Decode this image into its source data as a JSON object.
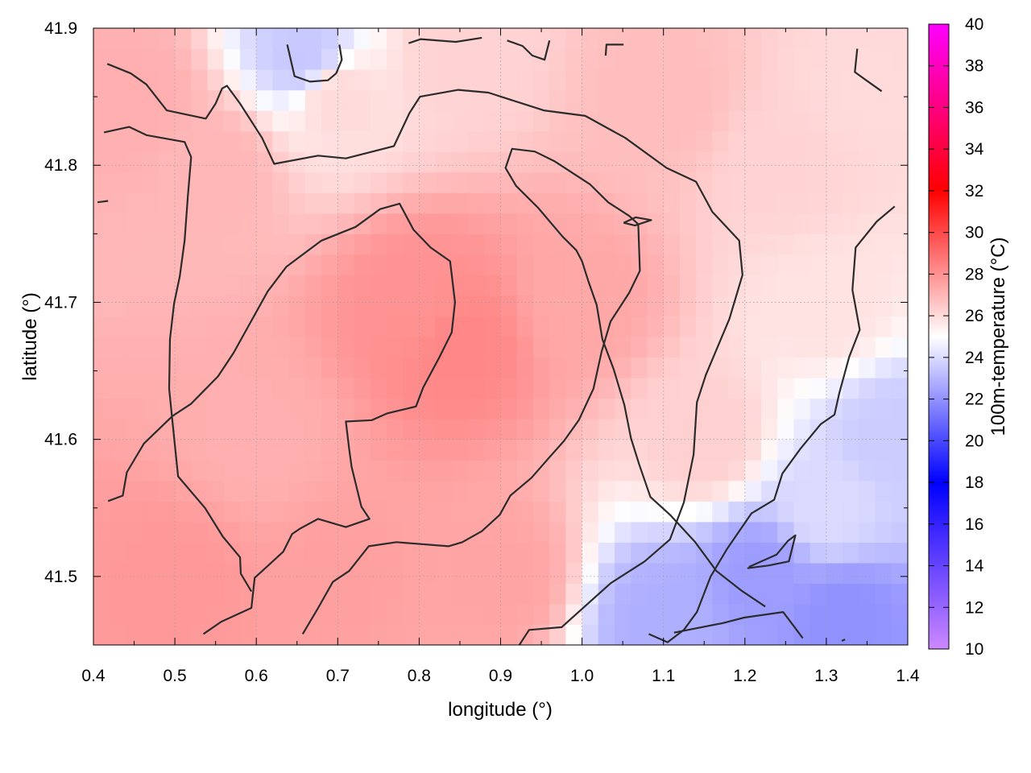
{
  "chart_data": {
    "type": "heatmap",
    "title": "",
    "xlabel": "longitude (°)",
    "ylabel": "latitude (°)",
    "colorbar_label": "100m-temperature (°C)",
    "xlim": [
      0.4,
      1.4
    ],
    "ylim": [
      41.45,
      41.9
    ],
    "clim": [
      10,
      40
    ],
    "grid": true,
    "x_ticks": [
      0.4,
      0.5,
      0.6,
      0.7,
      0.8,
      0.9,
      1.0,
      1.1,
      1.2,
      1.3,
      1.4
    ],
    "x_tick_labels": [
      "0.4",
      "0.5",
      "0.6",
      "0.7",
      "0.8",
      "0.9",
      "1.0",
      "1.1",
      "1.2",
      "1.3",
      "1.4"
    ],
    "y_ticks": [
      41.5,
      41.6,
      41.7,
      41.8,
      41.9
    ],
    "y_tick_labels": [
      "41.5",
      "41.6",
      "41.7",
      "41.8",
      "41.9"
    ],
    "colorbar_ticks": [
      10,
      12,
      14,
      16,
      18,
      20,
      22,
      24,
      26,
      28,
      30,
      32,
      34,
      36,
      38,
      40
    ],
    "colorbar_tick_labels": [
      "10",
      "12",
      "14",
      "16",
      "18",
      "20",
      "22",
      "24",
      "26",
      "28",
      "30",
      "32",
      "34",
      "36",
      "38",
      "40"
    ],
    "colormap": [
      {
        "value": 10,
        "color": "#cc88ff"
      },
      {
        "value": 18,
        "color": "#0000ff"
      },
      {
        "value": 25,
        "color": "#ffffff"
      },
      {
        "value": 32,
        "color": "#ff0000"
      },
      {
        "value": 40,
        "color": "#ff00ff"
      }
    ],
    "field_samples": [
      {
        "lon": 0.45,
        "lat": 41.85,
        "value": 27.2
      },
      {
        "lon": 0.55,
        "lat": 41.8,
        "value": 27.0
      },
      {
        "lon": 0.66,
        "lat": 41.88,
        "value": 23.5
      },
      {
        "lon": 0.7,
        "lat": 41.85,
        "value": 26.0
      },
      {
        "lon": 0.85,
        "lat": 41.88,
        "value": 26.2
      },
      {
        "lon": 0.8,
        "lat": 41.7,
        "value": 28.0
      },
      {
        "lon": 0.85,
        "lat": 41.67,
        "value": 28.3
      },
      {
        "lon": 0.6,
        "lat": 41.6,
        "value": 27.2
      },
      {
        "lon": 0.5,
        "lat": 41.5,
        "value": 27.8
      },
      {
        "lon": 0.7,
        "lat": 41.5,
        "value": 27.6
      },
      {
        "lon": 0.9,
        "lat": 41.5,
        "value": 27.5
      },
      {
        "lon": 1.0,
        "lat": 41.7,
        "value": 27.4
      },
      {
        "lon": 1.1,
        "lat": 41.85,
        "value": 26.8
      },
      {
        "lon": 1.25,
        "lat": 41.8,
        "value": 26.2
      },
      {
        "lon": 1.35,
        "lat": 41.85,
        "value": 26.0
      },
      {
        "lon": 1.3,
        "lat": 41.7,
        "value": 25.8
      },
      {
        "lon": 1.15,
        "lat": 41.6,
        "value": 26.3
      },
      {
        "lon": 1.3,
        "lat": 41.55,
        "value": 24.0
      },
      {
        "lon": 1.22,
        "lat": 41.5,
        "value": 22.3
      },
      {
        "lon": 1.1,
        "lat": 41.47,
        "value": 22.8
      },
      {
        "lon": 1.32,
        "lat": 41.47,
        "value": 22.0
      },
      {
        "lon": 1.38,
        "lat": 41.6,
        "value": 23.6
      }
    ],
    "contours": [
      {
        "level": 27,
        "points": [
          [
            0.417,
            41.874
          ],
          [
            0.446,
            41.867
          ],
          [
            0.465,
            41.859
          ],
          [
            0.49,
            41.84
          ],
          [
            0.538,
            41.834
          ],
          [
            0.55,
            41.845
          ],
          [
            0.558,
            41.856
          ],
          [
            0.564,
            41.858
          ],
          [
            0.58,
            41.845
          ],
          [
            0.607,
            41.82
          ],
          [
            0.622,
            41.801
          ],
          [
            0.676,
            41.807
          ],
          [
            0.71,
            41.805
          ],
          [
            0.769,
            41.814
          ],
          [
            0.788,
            41.838
          ],
          [
            0.801,
            41.85
          ],
          [
            0.848,
            41.855
          ],
          [
            0.885,
            41.853
          ],
          [
            0.953,
            41.84
          ],
          [
            1.004,
            41.836
          ],
          [
            1.053,
            41.82
          ],
          [
            1.104,
            41.798
          ],
          [
            1.14,
            41.788
          ],
          [
            1.16,
            41.766
          ],
          [
            1.193,
            41.745
          ],
          [
            1.197,
            41.72
          ],
          [
            1.181,
            41.688
          ],
          [
            1.152,
            41.647
          ],
          [
            1.141,
            41.627
          ],
          [
            1.137,
            41.589
          ],
          [
            1.125,
            41.554
          ],
          [
            1.108,
            41.527
          ],
          [
            1.077,
            41.511
          ],
          [
            1.035,
            41.495
          ],
          [
            0.975,
            41.463
          ],
          [
            0.935,
            41.461
          ],
          [
            0.911,
            41.439
          ]
        ]
      },
      {
        "level": 27,
        "points": [
          [
            0.413,
            41.824
          ],
          [
            0.444,
            41.828
          ],
          [
            0.465,
            41.822
          ],
          [
            0.512,
            41.817
          ],
          [
            0.52,
            41.806
          ],
          [
            0.516,
            41.778
          ],
          [
            0.512,
            41.745
          ],
          [
            0.506,
            41.719
          ],
          [
            0.499,
            41.699
          ],
          [
            0.494,
            41.673
          ],
          [
            0.493,
            41.637
          ],
          [
            0.497,
            41.613
          ],
          [
            0.504,
            41.573
          ],
          [
            0.537,
            41.55
          ],
          [
            0.559,
            41.529
          ],
          [
            0.58,
            41.514
          ],
          [
            0.581,
            41.502
          ],
          [
            0.594,
            41.489
          ]
        ]
      },
      {
        "level": 28,
        "points": [
          [
            0.418,
            41.555
          ],
          [
            0.436,
            41.559
          ],
          [
            0.441,
            41.576
          ],
          [
            0.462,
            41.597
          ],
          [
            0.497,
            41.617
          ],
          [
            0.52,
            41.626
          ],
          [
            0.553,
            41.646
          ],
          [
            0.572,
            41.663
          ],
          [
            0.614,
            41.708
          ],
          [
            0.637,
            41.726
          ],
          [
            0.68,
            41.745
          ],
          [
            0.722,
            41.755
          ],
          [
            0.752,
            41.768
          ],
          [
            0.776,
            41.772
          ],
          [
            0.793,
            41.753
          ],
          [
            0.814,
            41.74
          ],
          [
            0.838,
            41.73
          ],
          [
            0.844,
            41.7
          ],
          [
            0.84,
            41.678
          ],
          [
            0.824,
            41.659
          ],
          [
            0.805,
            41.638
          ],
          [
            0.796,
            41.624
          ],
          [
            0.761,
            41.619
          ],
          [
            0.742,
            41.614
          ],
          [
            0.71,
            41.613
          ],
          [
            0.714,
            41.593
          ],
          [
            0.717,
            41.58
          ],
          [
            0.729,
            41.551
          ],
          [
            0.739,
            41.542
          ],
          [
            0.71,
            41.536
          ],
          [
            0.676,
            41.542
          ],
          [
            0.654,
            41.535
          ],
          [
            0.644,
            41.531
          ],
          [
            0.633,
            41.518
          ],
          [
            0.611,
            41.506
          ],
          [
            0.598,
            41.499
          ],
          [
            0.594,
            41.477
          ],
          [
            0.557,
            41.467
          ],
          [
            0.535,
            41.458
          ]
        ]
      },
      {
        "level": 28,
        "points": [
          [
            0.657,
            41.458
          ],
          [
            0.676,
            41.477
          ],
          [
            0.694,
            41.496
          ],
          [
            0.714,
            41.504
          ],
          [
            0.738,
            41.522
          ],
          [
            0.772,
            41.525
          ],
          [
            0.836,
            41.522
          ],
          [
            0.853,
            41.525
          ],
          [
            0.877,
            41.533
          ],
          [
            0.899,
            41.545
          ],
          [
            0.912,
            41.559
          ],
          [
            0.938,
            41.572
          ],
          [
            0.96,
            41.587
          ],
          [
            0.978,
            41.599
          ],
          [
            0.996,
            41.614
          ],
          [
            1.014,
            41.637
          ],
          [
            1.024,
            41.664
          ],
          [
            1.035,
            41.686
          ],
          [
            1.058,
            41.707
          ],
          [
            1.071,
            41.723
          ],
          [
            1.069,
            41.757
          ],
          [
            1.058,
            41.763
          ],
          [
            1.032,
            41.773
          ],
          [
            1.01,
            41.786
          ],
          [
            0.966,
            41.803
          ],
          [
            0.942,
            41.81
          ],
          [
            0.914,
            41.812
          ],
          [
            0.906,
            41.798
          ],
          [
            0.919,
            41.785
          ],
          [
            0.946,
            41.769
          ],
          [
            0.976,
            41.748
          ],
          [
            0.993,
            41.738
          ],
          [
            1.0,
            41.73
          ],
          [
            1.008,
            41.715
          ],
          [
            1.018,
            41.698
          ],
          [
            1.025,
            41.673
          ],
          [
            1.039,
            41.651
          ],
          [
            1.052,
            41.625
          ],
          [
            1.06,
            41.601
          ],
          [
            1.07,
            41.582
          ],
          [
            1.084,
            41.558
          ],
          [
            1.108,
            41.545
          ],
          [
            1.139,
            41.525
          ],
          [
            1.165,
            41.504
          ],
          [
            1.195,
            41.49
          ],
          [
            1.225,
            41.478
          ]
        ]
      },
      {
        "level": 26,
        "points": [
          [
            1.338,
            41.885
          ],
          [
            1.335,
            41.868
          ],
          [
            1.349,
            41.862
          ],
          [
            1.368,
            41.854
          ]
        ]
      },
      {
        "level": 26,
        "points": [
          [
            1.384,
            41.77
          ],
          [
            1.362,
            41.759
          ],
          [
            1.336,
            41.74
          ],
          [
            1.332,
            41.709
          ],
          [
            1.341,
            41.68
          ],
          [
            1.328,
            41.66
          ],
          [
            1.316,
            41.634
          ],
          [
            1.31,
            41.618
          ],
          [
            1.293,
            41.611
          ],
          [
            1.268,
            41.593
          ],
          [
            1.246,
            41.575
          ],
          [
            1.236,
            41.556
          ],
          [
            1.208,
            41.546
          ],
          [
            1.178,
            41.52
          ],
          [
            1.158,
            41.5
          ],
          [
            1.141,
            41.474
          ],
          [
            1.125,
            41.461
          ],
          [
            1.105,
            41.452
          ],
          [
            1.082,
            41.458
          ]
        ]
      },
      {
        "level": 26,
        "points": [
          [
            0.638,
            41.888
          ],
          [
            0.647,
            41.865
          ],
          [
            0.666,
            41.861
          ],
          [
            0.688,
            41.862
          ],
          [
            0.698,
            41.867
          ],
          [
            0.705,
            41.877
          ],
          [
            0.702,
            41.888
          ]
        ]
      },
      {
        "level": 23,
        "points": [
          [
            1.203,
            41.506
          ],
          [
            1.229,
            41.508
          ],
          [
            1.254,
            41.511
          ],
          [
            1.262,
            41.53
          ],
          [
            1.253,
            41.526
          ],
          [
            1.239,
            41.516
          ],
          [
            1.205,
            41.507
          ]
        ]
      },
      {
        "level": 27,
        "points": [
          [
            1.051,
            41.758
          ],
          [
            1.066,
            41.762
          ],
          [
            1.085,
            41.76
          ],
          [
            1.065,
            41.756
          ],
          [
            1.051,
            41.758
          ]
        ]
      },
      {
        "level": 22,
        "points": [
          [
            0.405,
            41.773
          ],
          [
            0.418,
            41.774
          ]
        ]
      },
      {
        "level": 22,
        "points": [
          [
            0.787,
            41.889
          ],
          [
            0.802,
            41.892
          ],
          [
            0.845,
            41.89
          ],
          [
            0.877,
            41.893
          ]
        ]
      },
      {
        "level": 22,
        "points": [
          [
            0.908,
            41.891
          ],
          [
            0.927,
            41.887
          ],
          [
            0.939,
            41.88
          ],
          [
            0.954,
            41.877
          ],
          [
            0.96,
            41.891
          ]
        ]
      },
      {
        "level": 22,
        "points": [
          [
            1.029,
            41.88
          ],
          [
            1.03,
            41.888
          ],
          [
            1.051,
            41.888
          ]
        ]
      },
      {
        "level": 22,
        "points": [
          [
            1.113,
            41.459
          ],
          [
            1.173,
            41.466
          ],
          [
            1.199,
            41.47
          ],
          [
            1.247,
            41.474
          ],
          [
            1.261,
            41.463
          ],
          [
            1.271,
            41.455
          ]
        ]
      },
      {
        "level": 22,
        "points": [
          [
            1.319,
            41.453
          ],
          [
            1.323,
            41.454
          ]
        ]
      }
    ]
  }
}
